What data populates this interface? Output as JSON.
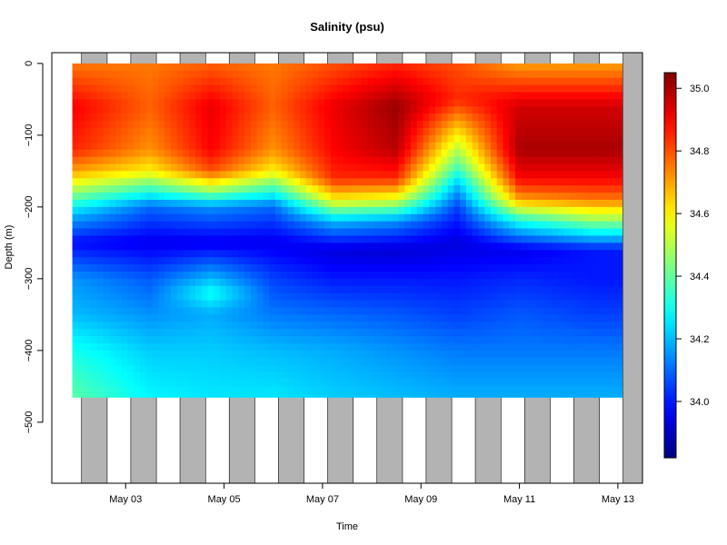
{
  "chart_data": {
    "type": "heatmap",
    "title": "Salinity (psu)",
    "xlabel": "Time",
    "ylabel": "Depth (m)",
    "x_range": [
      "2014-05-01T12:00",
      "2014-05-13T12:00"
    ],
    "ylim": [
      -585,
      15
    ],
    "x_ticks": [
      {
        "date": "2014-05-03",
        "label": "May 03"
      },
      {
        "date": "2014-05-05",
        "label": "May 05"
      },
      {
        "date": "2014-05-07",
        "label": "May 07"
      },
      {
        "date": "2014-05-09",
        "label": "May 09"
      },
      {
        "date": "2014-05-11",
        "label": "May 11"
      },
      {
        "date": "2014-05-13",
        "label": "May 13"
      }
    ],
    "y_ticks": [
      0,
      -100,
      -200,
      -300,
      -400,
      -500
    ],
    "y_tick_labels": [
      "0",
      "−100",
      "−200",
      "−300",
      "−400",
      "−500"
    ],
    "colorbar": {
      "range": [
        33.82,
        35.05
      ],
      "ticks": [
        34.0,
        34.2,
        34.4,
        34.6,
        34.8,
        35.0
      ],
      "tick_labels": [
        "34.0",
        "34.2",
        "34.4",
        "34.6",
        "34.8",
        "35.0"
      ],
      "colormap": "jet"
    },
    "night_shading": {
      "color": "#b3b3b3",
      "intervals": [
        [
          "2014-05-02T02:30",
          "2014-05-02T15:00"
        ],
        [
          "2014-05-03T02:30",
          "2014-05-03T15:00"
        ],
        [
          "2014-05-04T02:30",
          "2014-05-04T15:00"
        ],
        [
          "2014-05-05T02:30",
          "2014-05-05T15:00"
        ],
        [
          "2014-05-06T02:30",
          "2014-05-06T15:00"
        ],
        [
          "2014-05-07T02:30",
          "2014-05-07T15:00"
        ],
        [
          "2014-05-08T02:30",
          "2014-05-08T15:00"
        ],
        [
          "2014-05-09T02:30",
          "2014-05-09T15:00"
        ],
        [
          "2014-05-10T02:30",
          "2014-05-10T15:00"
        ],
        [
          "2014-05-11T02:30",
          "2014-05-11T15:00"
        ],
        [
          "2014-05-12T02:30",
          "2014-05-12T15:00"
        ],
        [
          "2014-05-13T02:30",
          "2014-05-13T12:00"
        ]
      ]
    },
    "data_extent": {
      "time_start": "2014-05-01T22:00",
      "time_end": "2014-05-13T02:00",
      "depth_top": 0,
      "depth_bottom": -465
    },
    "profiles": [
      {
        "time": "2014-05-02T00:00",
        "depth": [
          0,
          -60,
          -120,
          -150,
          -180,
          -210,
          -250,
          -300,
          -350,
          -400,
          -460
        ],
        "salinity": [
          34.75,
          34.9,
          34.85,
          34.7,
          34.45,
          34.2,
          33.98,
          34.15,
          34.2,
          34.3,
          34.38
        ]
      },
      {
        "time": "2014-05-03T12:00",
        "depth": [
          0,
          -60,
          -120,
          -150,
          -175,
          -200,
          -250,
          -300,
          -350,
          -400,
          -460
        ],
        "salinity": [
          34.75,
          34.78,
          34.72,
          34.6,
          34.35,
          34.1,
          33.95,
          34.08,
          34.15,
          34.22,
          34.27
        ]
      },
      {
        "time": "2014-05-04T18:00",
        "depth": [
          0,
          -60,
          -120,
          -150,
          -175,
          -200,
          -250,
          -320,
          -350,
          -400,
          -460
        ],
        "salinity": [
          34.78,
          34.92,
          34.9,
          34.8,
          34.5,
          34.15,
          33.95,
          34.3,
          34.18,
          34.22,
          34.25
        ]
      },
      {
        "time": "2014-05-06T00:00",
        "depth": [
          0,
          -60,
          -120,
          -150,
          -175,
          -200,
          -250,
          -300,
          -350,
          -400,
          -460
        ],
        "salinity": [
          34.75,
          34.78,
          34.72,
          34.6,
          34.35,
          34.1,
          33.95,
          34.05,
          34.12,
          34.2,
          34.25
        ]
      },
      {
        "time": "2014-05-07T06:00",
        "depth": [
          0,
          -60,
          -120,
          -160,
          -190,
          -220,
          -260,
          -300,
          -350,
          -400,
          -460
        ],
        "salinity": [
          34.8,
          34.92,
          34.9,
          34.85,
          34.6,
          34.2,
          33.93,
          34.0,
          34.1,
          34.18,
          34.22
        ]
      },
      {
        "time": "2014-05-08T12:00",
        "depth": [
          0,
          -60,
          -120,
          -160,
          -190,
          -220,
          -260,
          -300,
          -350,
          -400,
          -460
        ],
        "salinity": [
          34.85,
          35.02,
          34.98,
          34.85,
          34.55,
          34.15,
          33.92,
          34.0,
          34.08,
          34.15,
          34.2
        ]
      },
      {
        "time": "2014-05-09T18:00",
        "depth": [
          0,
          -50,
          -100,
          -140,
          -170,
          -200,
          -250,
          -300,
          -350,
          -400,
          -460
        ],
        "salinity": [
          34.8,
          34.85,
          34.6,
          34.4,
          34.2,
          34.05,
          33.93,
          34.0,
          34.05,
          34.12,
          34.18
        ]
      },
      {
        "time": "2014-05-11T00:00",
        "depth": [
          0,
          -60,
          -120,
          -160,
          -190,
          -220,
          -260,
          -300,
          -350,
          -400,
          -460
        ],
        "salinity": [
          34.7,
          34.95,
          35.0,
          34.9,
          34.7,
          34.3,
          33.95,
          34.02,
          34.08,
          34.12,
          34.18
        ]
      },
      {
        "time": "2014-05-12T12:00",
        "depth": [
          0,
          -60,
          -120,
          -160,
          -190,
          -220,
          -260,
          -300,
          -350,
          -400,
          -460
        ],
        "salinity": [
          34.7,
          34.95,
          35.0,
          34.9,
          34.75,
          34.45,
          34.0,
          34.0,
          34.05,
          34.12,
          34.18
        ]
      }
    ]
  }
}
